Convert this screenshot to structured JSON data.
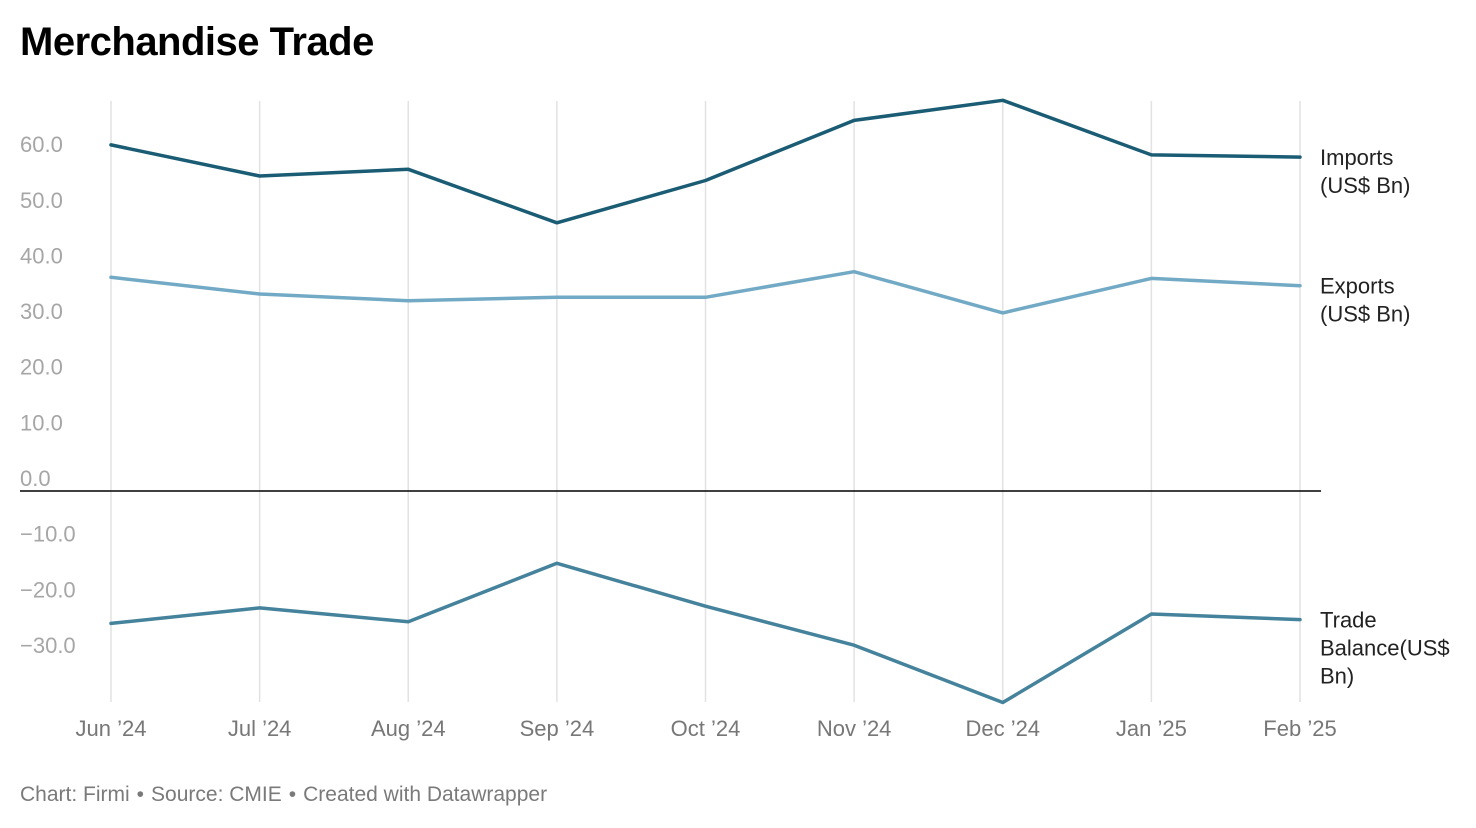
{
  "title": "Merchandise Trade",
  "footer": {
    "chart_credit": "Chart: Firmi",
    "source": "Source: CMIE",
    "created_with": "Created with Datawrapper"
  },
  "colors": {
    "imports": "#1b5c75",
    "exports": "#72aac6",
    "trade_balance": "#45829c",
    "gridline": "#e2e2e2",
    "zero_line": "#000000"
  },
  "chart_data": {
    "type": "line",
    "title": "Merchandise Trade",
    "x": [
      "Jun ’24",
      "Jul ’24",
      "Aug ’24",
      "Sep ’24",
      "Oct ’24",
      "Nov ’24",
      "Dec ’24",
      "Jan ’25",
      "Feb ’25"
    ],
    "y_ticks": [
      "60.0",
      "50.0",
      "40.0",
      "30.0",
      "20.0",
      "10.0",
      "0.0",
      "−10.0",
      "−20.0",
      "−30.0"
    ],
    "ylim": [
      -38,
      67
    ],
    "grid": "vertical",
    "legend": "direct labels at right",
    "series": [
      {
        "name": "Imports (US$ Bn)",
        "label_lines": [
          "Imports",
          "(US$ Bn)"
        ],
        "values": [
          62.2,
          56.6,
          57.8,
          48.2,
          55.8,
          66.6,
          70.2,
          60.4,
          60.0
        ]
      },
      {
        "name": "Exports (US$ Bn)",
        "label_lines": [
          "Exports",
          "(US$ Bn)"
        ],
        "values": [
          38.4,
          35.4,
          34.2,
          34.8,
          34.8,
          39.4,
          32.0,
          38.2,
          36.9
        ]
      },
      {
        "name": "Trade Balance(US$ Bn)",
        "label_lines": [
          "Trade",
          "Balance(US$",
          "Bn)"
        ],
        "values": [
          -23.8,
          -21.0,
          -23.5,
          -13.0,
          -20.7,
          -27.7,
          -38.0,
          -22.1,
          -23.1
        ]
      }
    ]
  }
}
